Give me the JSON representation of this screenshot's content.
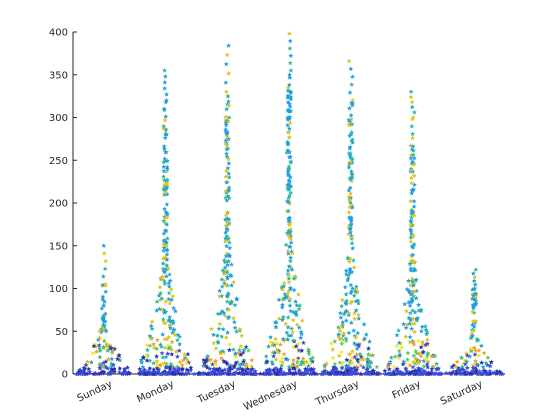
{
  "chart_data": {
    "type": "scatter",
    "title": "",
    "xlabel": "",
    "ylabel": "",
    "categories": [
      "Sunday",
      "Monday",
      "Tuesday",
      "Wednesday",
      "Thursday",
      "Friday",
      "Saturday"
    ],
    "ylim": [
      0,
      400
    ],
    "yticks": [
      0,
      50,
      100,
      150,
      200,
      250,
      300,
      350,
      400
    ],
    "marker": "star",
    "grid": false,
    "legend": "none",
    "series": [
      {
        "category": "Sunday",
        "max": 150,
        "spread_max": 105,
        "samples": 140
      },
      {
        "category": "Monday",
        "max": 355,
        "spread_max": 320,
        "samples": 300
      },
      {
        "category": "Tuesday",
        "max": 384,
        "spread_max": 330,
        "samples": 300
      },
      {
        "category": "Wednesday",
        "max": 398,
        "spread_max": 355,
        "samples": 320
      },
      {
        "category": "Thursday",
        "max": 366,
        "spread_max": 320,
        "samples": 300
      },
      {
        "category": "Friday",
        "max": 330,
        "spread_max": 300,
        "samples": 280
      },
      {
        "category": "Saturday",
        "max": 122,
        "spread_max": 100,
        "samples": 140
      }
    ],
    "palette": [
      "#1f9fdb",
      "#e0c21e",
      "#3a4dd6",
      "#2fb89a",
      "#f4e820",
      "#5ec85a",
      "#2a2fb0",
      "#f0a030"
    ]
  }
}
